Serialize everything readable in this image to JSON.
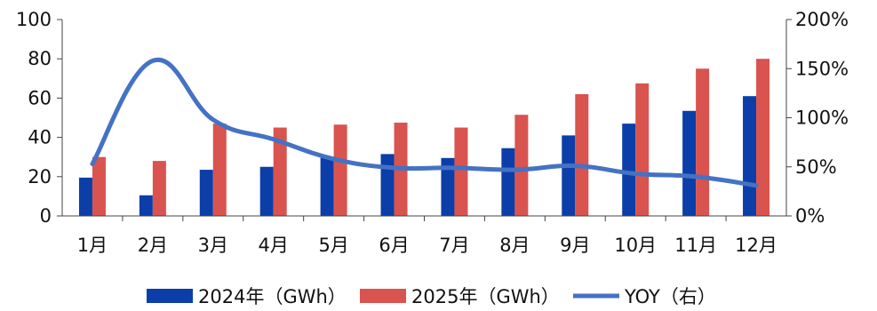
{
  "chart_data": {
    "type": "bar",
    "categories": [
      "1月",
      "2月",
      "3月",
      "4月",
      "5月",
      "6月",
      "7月",
      "8月",
      "9月",
      "10月",
      "11月",
      "12月"
    ],
    "series": [
      {
        "name": "2024年（GWh）",
        "kind": "bar",
        "axis": "left",
        "color": "#0b3ea8",
        "values": [
          19.5,
          10.5,
          23.5,
          25,
          30,
          31.5,
          29.5,
          34.5,
          41,
          47,
          53.5,
          61
        ]
      },
      {
        "name": "2025年（GWh）",
        "kind": "bar",
        "axis": "left",
        "color": "#d9534f",
        "values": [
          30,
          28,
          47,
          45,
          46.5,
          47.5,
          45,
          51.5,
          62,
          67.5,
          75,
          80
        ]
      },
      {
        "name": "YOY（右）",
        "kind": "line",
        "axis": "right",
        "color": "#4472c4",
        "values": [
          53,
          158,
          98,
          78,
          58,
          49,
          49,
          47,
          51,
          43,
          40,
          31
        ]
      }
    ],
    "y_left": {
      "min": 0,
      "max": 100,
      "ticks": [
        "0",
        "20",
        "40",
        "60",
        "80",
        "100"
      ]
    },
    "y_right": {
      "min": 0,
      "max": 200,
      "ticks": [
        "0%",
        "50%",
        "100%",
        "150%",
        "200%"
      ]
    },
    "grid": false,
    "legend_position": "bottom"
  },
  "colors": {
    "bar_2024": "#0b3ea8",
    "bar_2025": "#d9534f",
    "line_yoy": "#4472c4",
    "axis": "#444444"
  }
}
